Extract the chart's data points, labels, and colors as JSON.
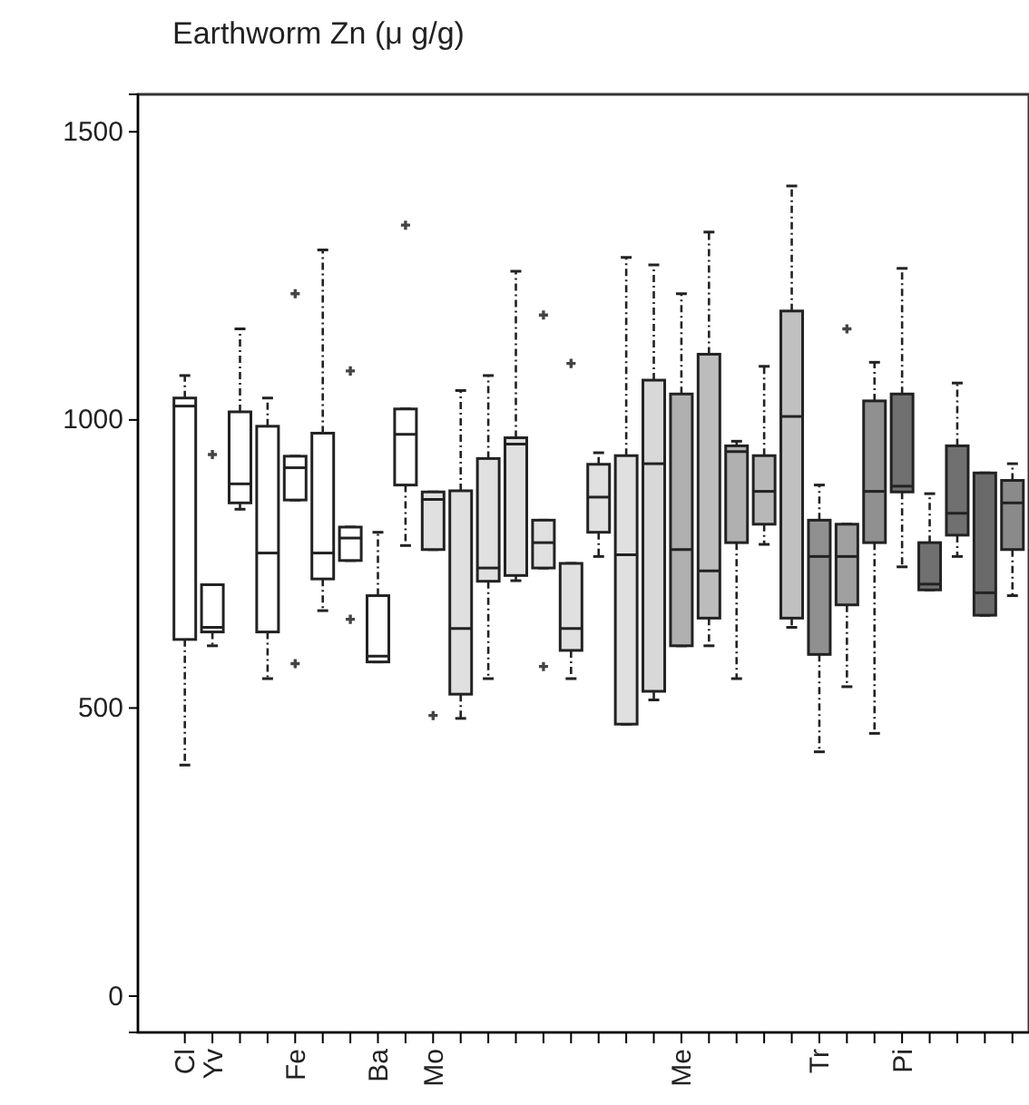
{
  "chart_data": {
    "type": "box",
    "title": "Earthworm Zn (μ g/g)",
    "categories": [
      "Cl",
      "Yv",
      null,
      null,
      "Fe",
      null,
      null,
      "Ba",
      null,
      "Mo",
      null,
      null,
      null,
      null,
      null,
      null,
      null,
      null,
      "Me",
      null,
      null,
      null,
      null,
      "Tr",
      null,
      null,
      "Pi",
      null,
      null,
      null,
      null
    ],
    "ylim": [
      -63,
      1565
    ],
    "yticks": [
      0,
      500,
      1000,
      1500
    ],
    "grid": false,
    "line_style": "dashed",
    "marker": "cross",
    "colors": [
      "#ffffff",
      "#ffffff",
      "#ffffff",
      "#ffffff",
      "#ffffff",
      "#ffffff",
      "#ffffff",
      "#ffffff",
      "#ffffff",
      "#e0e0e0",
      "#e0e0e0",
      "#e0e0e0",
      "#e0e0e0",
      "#e0e0e0",
      "#e0e0e0",
      "#e0e0e0",
      "#e0e0e0",
      "#d8d8d8",
      "#b0b0b0",
      "#bcbcbc",
      "#b0b0b0",
      "#b8b8b8",
      "#c0c0c0",
      "#909090",
      "#a0a0a0",
      "#909090",
      "#707070",
      "#707070",
      "#707070",
      "#6a6a6a",
      "#8a8a8a"
    ],
    "boxes": [
      {
        "low": 401,
        "q1": 619,
        "median": 1024,
        "q3": 1038,
        "high": 1077
      },
      {
        "low": 608,
        "q1": 632,
        "median": 640,
        "q3": 714,
        "high": 714,
        "outliers": [
          940
        ]
      },
      {
        "low": 845,
        "q1": 856,
        "median": 889,
        "q3": 1014,
        "high": 1158
      },
      {
        "low": 551,
        "q1": 632,
        "median": 769,
        "q3": 989,
        "high": 1038
      },
      {
        "low": 861,
        "q1": 861,
        "median": 917,
        "q3": 937,
        "high": 937,
        "outliers": [
          1219,
          577
        ]
      },
      {
        "low": 669,
        "q1": 724,
        "median": 769,
        "q3": 977,
        "high": 1295
      },
      {
        "low": 756,
        "q1": 756,
        "median": 795,
        "q3": 814,
        "high": 814,
        "outliers": [
          1085,
          654
        ]
      },
      {
        "low": 580,
        "q1": 580,
        "median": 590,
        "q3": 695,
        "high": 805
      },
      {
        "low": 782,
        "q1": 887,
        "median": 975,
        "q3": 1019,
        "high": 1019,
        "outliers": [
          1338
        ]
      },
      {
        "low": 775,
        "q1": 775,
        "median": 862,
        "q3": 875,
        "high": 875,
        "outliers": [
          487
        ]
      },
      {
        "low": 482,
        "q1": 524,
        "median": 638,
        "q3": 877,
        "high": 1051
      },
      {
        "low": 551,
        "q1": 720,
        "median": 743,
        "q3": 933,
        "high": 1077
      },
      {
        "low": 721,
        "q1": 730,
        "median": 958,
        "q3": 969,
        "high": 1258
      },
      {
        "low": 743,
        "q1": 743,
        "median": 787,
        "q3": 826,
        "high": 826,
        "outliers": [
          1182,
          572
        ]
      },
      {
        "low": 551,
        "q1": 600,
        "median": 638,
        "q3": 751,
        "high": 751,
        "outliers": [
          1098
        ]
      },
      {
        "low": 763,
        "q1": 805,
        "median": 866,
        "q3": 923,
        "high": 943
      },
      {
        "low": 472,
        "q1": 472,
        "median": 766,
        "q3": 938,
        "high": 1282
      },
      {
        "low": 514,
        "q1": 529,
        "median": 924,
        "q3": 1069,
        "high": 1269
      },
      {
        "low": 608,
        "q1": 608,
        "median": 775,
        "q3": 1045,
        "high": 1219
      },
      {
        "low": 608,
        "q1": 656,
        "median": 738,
        "q3": 1114,
        "high": 1326
      },
      {
        "low": 551,
        "q1": 787,
        "median": 945,
        "q3": 955,
        "high": 963
      },
      {
        "low": 784,
        "q1": 819,
        "median": 876,
        "q3": 938,
        "high": 1093
      },
      {
        "low": 640,
        "q1": 656,
        "median": 1006,
        "q3": 1189,
        "high": 1406
      },
      {
        "low": 424,
        "q1": 593,
        "median": 763,
        "q3": 826,
        "high": 887
      },
      {
        "low": 537,
        "q1": 679,
        "median": 763,
        "q3": 819,
        "high": 819,
        "outliers": [
          1158
        ]
      },
      {
        "low": 456,
        "q1": 787,
        "median": 876,
        "q3": 1033,
        "high": 1100
      },
      {
        "low": 745,
        "q1": 875,
        "median": 885,
        "q3": 1045,
        "high": 1263
      },
      {
        "low": 705,
        "q1": 705,
        "median": 715,
        "q3": 787,
        "high": 872
      },
      {
        "low": 763,
        "q1": 800,
        "median": 838,
        "q3": 955,
        "high": 1064
      },
      {
        "low": 661,
        "q1": 661,
        "median": 700,
        "q3": 908,
        "high": 908
      },
      {
        "low": 695,
        "q1": 775,
        "median": 856,
        "q3": 895,
        "high": 924
      }
    ]
  }
}
